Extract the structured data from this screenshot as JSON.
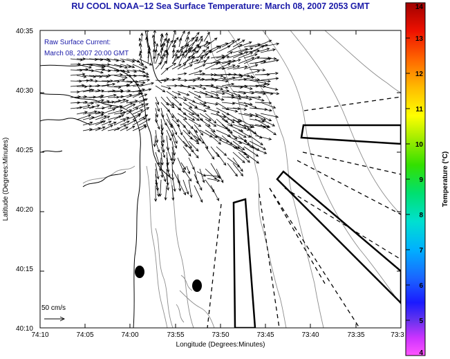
{
  "title": "RU COOL  NOAA−12  Sea Surface Temperature:  March 08, 2007 2053 GMT",
  "legend": {
    "line1": "Raw Surface Current:",
    "line2": "March 08, 2007 20:00 GMT"
  },
  "scale_label": "50 cm/s",
  "axes": {
    "xlabel": "Longitude (Degrees:Minutes)",
    "ylabel": "Latitude (Degrees:Minutes)",
    "xticks": [
      "74:10",
      "74:05",
      "74:00",
      "73:55",
      "73:50",
      "73:45",
      "73:40",
      "73:35",
      "73:3"
    ],
    "yticks": [
      "40:35",
      "40:30",
      "40:25",
      "40:20",
      "40:15",
      "40:10"
    ]
  },
  "colorbar": {
    "label": "Temperature (°C)",
    "min": 4,
    "max": 14,
    "ticks": [
      "14",
      "13",
      "12",
      "11",
      "10",
      "9",
      "8",
      "7",
      "6",
      "5",
      "4"
    ]
  },
  "colors": {
    "title": "#1a1aa8",
    "legend": "#1a1aa8",
    "contour": "#8c8c8c",
    "coast": "#000000"
  },
  "markers": [
    "buoy-marker",
    "buoy-marker"
  ],
  "zones": [
    "dump-zone",
    "dump-zone",
    "dump-zone"
  ]
}
